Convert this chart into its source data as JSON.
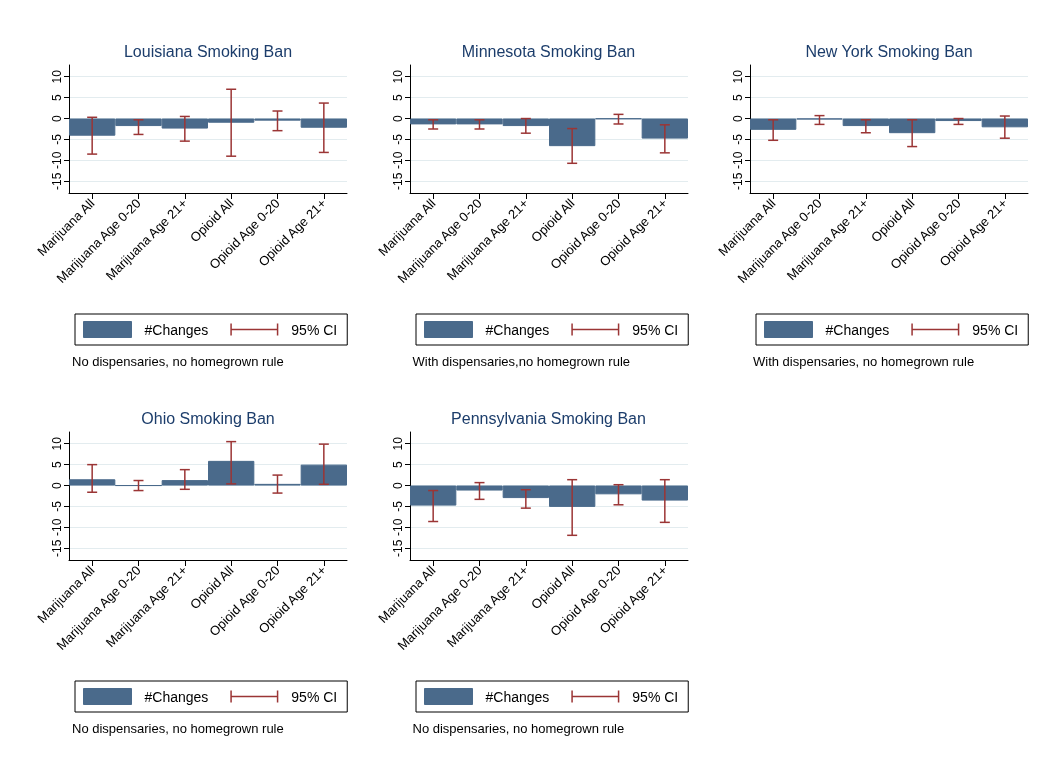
{
  "chart_data": [
    {
      "type": "bar",
      "title": "Louisiana Smoking Ban",
      "categories": [
        "Marijuana All",
        "Marijuana Age 0-20",
        "Marijuana Age 21+",
        "Opioid All",
        "Opioid Age 0-20",
        "Opioid Age 21+"
      ],
      "series": [
        {
          "name": "#Changes",
          "color": "#4a6a8b",
          "values": [
            -4.1,
            -1.8,
            -2.4,
            -1.0,
            -0.5,
            -2.2
          ],
          "errors": [
            [
              -8.5,
              0.3
            ],
            [
              -3.8,
              -0.3
            ],
            [
              -5.4,
              0.5
            ],
            [
              -9.0,
              7.0
            ],
            [
              -2.9,
              1.8
            ],
            [
              -8.1,
              3.7
            ]
          ]
        }
      ],
      "ylim": [
        -17.8,
        12.8
      ],
      "yticks": [
        -15,
        -10,
        -5,
        0,
        5,
        10
      ],
      "grid": "y",
      "legend": "bottom",
      "annotations": [
        "95% CI",
        "No dispensaries, no homegrown rule"
      ]
    },
    {
      "type": "bar",
      "title": "Minnesota Smoking Ban",
      "categories": [
        "Marijuana All",
        "Marijuana Age 0-20",
        "Marijuana Age 21+",
        "Opioid All",
        "Opioid Age 0-20",
        "Opioid Age 21+"
      ],
      "series": [
        {
          "name": "#Changes",
          "color": "#4a6a8b",
          "values": [
            -1.4,
            -1.4,
            -1.8,
            -6.6,
            -0.1,
            -4.8
          ],
          "errors": [
            [
              -2.5,
              -0.3
            ],
            [
              -2.5,
              -0.3
            ],
            [
              -3.5,
              0.0
            ],
            [
              -10.7,
              -2.4
            ],
            [
              -1.3,
              1.0
            ],
            [
              -8.2,
              -1.5
            ]
          ]
        }
      ],
      "ylim": [
        -17.8,
        12.8
      ],
      "yticks": [
        -15,
        -10,
        -5,
        0,
        5,
        10
      ],
      "grid": "y",
      "legend": "bottom",
      "annotations": [
        "95% CI",
        "With dispensaries,no homegrown rule"
      ]
    },
    {
      "type": "bar",
      "title": "New York Smoking Ban",
      "categories": [
        "Marijuana All",
        "Marijuana Age 0-20",
        "Marijuana Age 21+",
        "Opioid All",
        "Opioid Age 0-20",
        "Opioid Age 21+"
      ],
      "series": [
        {
          "name": "#Changes",
          "color": "#4a6a8b",
          "values": [
            -2.7,
            -0.2,
            -1.8,
            -3.5,
            -0.6,
            -2.1
          ],
          "errors": [
            [
              -5.2,
              -0.3
            ],
            [
              -1.4,
              0.7
            ],
            [
              -3.4,
              -0.3
            ],
            [
              -6.7,
              -0.3
            ],
            [
              -1.4,
              0.0
            ],
            [
              -4.7,
              0.6
            ]
          ]
        }
      ],
      "ylim": [
        -17.8,
        12.8
      ],
      "yticks": [
        -15,
        -10,
        -5,
        0,
        5,
        10
      ],
      "grid": "y",
      "legend": "bottom",
      "annotations": [
        "95% CI",
        "With dispensaries, no homegrown rule"
      ]
    },
    {
      "type": "bar",
      "title": "Ohio Smoking Ban",
      "categories": [
        "Marijuana All",
        "Marijuana Age 0-20",
        "Marijuana Age 21+",
        "Opioid All",
        "Opioid Age 0-20",
        "Opioid Age 21+"
      ],
      "series": [
        {
          "name": "#Changes",
          "color": "#4a6a8b",
          "values": [
            1.5,
            0.0,
            1.3,
            5.9,
            0.4,
            5.0
          ],
          "errors": [
            [
              -1.6,
              5.0
            ],
            [
              -1.2,
              1.2
            ],
            [
              -0.9,
              3.8
            ],
            [
              0.4,
              10.5
            ],
            [
              -1.8,
              2.5
            ],
            [
              0.3,
              9.9
            ]
          ]
        }
      ],
      "ylim": [
        -17.8,
        12.8
      ],
      "yticks": [
        -15,
        -10,
        -5,
        0,
        5,
        10
      ],
      "grid": "y",
      "legend": "bottom",
      "annotations": [
        "95% CI",
        "No dispensaries, no homegrown rule"
      ]
    },
    {
      "type": "bar",
      "title": "Pennsylvania Smoking Ban",
      "categories": [
        "Marijuana All",
        "Marijuana Age 0-20",
        "Marijuana Age 21+",
        "Opioid All",
        "Opioid Age 0-20",
        "Opioid Age 21+"
      ],
      "series": [
        {
          "name": "#Changes",
          "color": "#4a6a8b",
          "values": [
            -4.8,
            -1.2,
            -3.0,
            -5.1,
            -2.1,
            -3.6
          ],
          "errors": [
            [
              -8.6,
              -1.2
            ],
            [
              -3.3,
              0.7
            ],
            [
              -5.4,
              -1.0
            ],
            [
              -11.9,
              1.4
            ],
            [
              -4.6,
              0.2
            ],
            [
              -8.8,
              1.4
            ]
          ]
        }
      ],
      "ylim": [
        -17.8,
        12.8
      ],
      "yticks": [
        -15,
        -10,
        -5,
        0,
        5,
        10
      ],
      "grid": "y",
      "legend": "bottom",
      "annotations": [
        "95% CI",
        "No dispensaries, no homegrown rule"
      ]
    }
  ]
}
